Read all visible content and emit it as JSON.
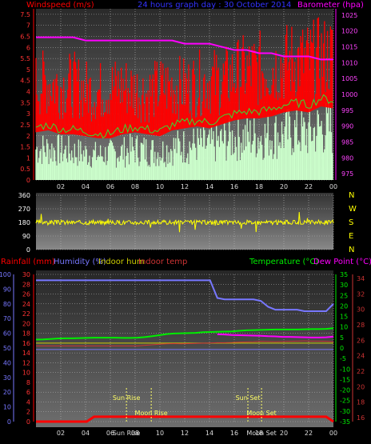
{
  "header": {
    "left": "Windspeed (m/s)",
    "center": "24 hours graph day : 30 October 2014",
    "right": "Barometer (hpa)"
  },
  "x_ticks": [
    "02",
    "04",
    "06",
    "08",
    "10",
    "12",
    "14",
    "16",
    "18",
    "20",
    "22",
    "00"
  ],
  "wind": {
    "y_ticks": [
      "0",
      "0.5",
      "1",
      "1.5",
      "2",
      "2.5",
      "3",
      "3.5",
      "4",
      "4.5",
      "5",
      "5.5",
      "6",
      "6.5",
      "7",
      "7.5"
    ],
    "y_range": [
      0,
      7.75
    ],
    "baro_ticks": [
      "975",
      "980",
      "985",
      "990",
      "995",
      "1000",
      "1005",
      "1010",
      "1015",
      "1020",
      "1025"
    ],
    "baro_range": [
      973,
      1027
    ],
    "baro_pressure": [
      1018,
      1018,
      1018,
      1018,
      1017,
      1017,
      1017,
      1017,
      1017,
      1017,
      1017,
      1017,
      1016,
      1016,
      1016,
      1015,
      1014,
      1014,
      1013,
      1013,
      1012,
      1012,
      1012,
      1011,
      1011
    ],
    "gust_level": [
      5.1,
      5.2,
      5.0,
      5.1,
      4.8,
      4.7,
      4.9,
      5.0,
      4.8,
      4.6,
      4.9,
      5.0,
      4.9,
      5.1,
      5.3,
      5.2,
      5.6,
      5.8,
      5.9,
      6.0,
      6.2,
      6.4,
      6.3,
      6.5,
      6.6
    ],
    "avg_level": [
      2.4,
      2.5,
      2.3,
      2.3,
      2.2,
      2.1,
      2.1,
      2.3,
      2.4,
      2.3,
      2.2,
      2.5,
      2.6,
      2.7,
      2.6,
      2.8,
      3.0,
      3.1,
      3.1,
      3.2,
      3.4,
      3.5,
      3.4,
      3.7,
      3.6
    ],
    "light_level": [
      2.0,
      2.0,
      1.9,
      1.8,
      1.7,
      1.6,
      1.7,
      1.8,
      2.0,
      1.9,
      1.8,
      2.1,
      2.2,
      2.3,
      2.2,
      2.5,
      2.7,
      2.8,
      2.8,
      2.9,
      3.0,
      3.1,
      3.0,
      3.4,
      3.3
    ],
    "colors": {
      "gust": "#ff0000",
      "avg": "#33dd33",
      "light": "#ccffcc",
      "baro": "#ff00ff"
    }
  },
  "direction": {
    "y_ticks": [
      "0",
      "90",
      "180",
      "270",
      "360"
    ],
    "compass": [
      "N",
      "W",
      "S",
      "E",
      "N"
    ],
    "y_range": [
      0,
      360
    ],
    "mean_deg": 180,
    "color": "#ffff00"
  },
  "bottom": {
    "labels": {
      "rain": "Rainfall (mm)",
      "humidity": "Humidity (%)",
      "indoor_hum": "Indoor hum",
      "indoor_temp": "Indoor temp",
      "temperature": "Temperature (°C)",
      "dew": "Dew Point (°C)"
    },
    "humidity_ticks": [
      "0",
      "10",
      "20",
      "30",
      "40",
      "50",
      "60",
      "70",
      "80",
      "90",
      "100"
    ],
    "rain_ticks": [
      "0",
      "2",
      "4",
      "6",
      "8",
      "10",
      "12",
      "14",
      "16",
      "18",
      "20",
      "22",
      "24",
      "26",
      "28",
      "30"
    ],
    "temp_ticks": [
      "-35",
      "-30",
      "-25",
      "-20",
      "-15",
      "-10",
      "-5",
      "0",
      "5",
      "10",
      "15",
      "20",
      "25",
      "30",
      "35"
    ],
    "indoor_ticks": [
      "16",
      "18",
      "20",
      "22",
      "24",
      "26",
      "28",
      "30",
      "32",
      "34"
    ],
    "humidity_range": [
      0,
      100
    ],
    "rain_range": [
      0,
      30
    ],
    "temp_range": [
      -35,
      35
    ],
    "humidity_series": [
      96,
      96,
      96,
      96,
      96,
      96,
      96,
      96,
      96,
      96,
      96,
      96,
      96,
      96,
      96,
      96,
      96,
      96,
      96,
      96,
      96,
      96,
      96,
      96,
      96,
      84,
      83,
      83,
      83,
      83,
      83,
      82,
      78,
      76,
      76,
      76,
      76,
      75,
      75,
      75,
      75,
      80
    ],
    "temperature_series": [
      4.0,
      4.1,
      4.3,
      4.5,
      4.6,
      4.6,
      4.7,
      4.8,
      4.9,
      4.9,
      4.9,
      4.9,
      4.8,
      4.8,
      4.9,
      5.2,
      5.6,
      6.1,
      6.6,
      6.9,
      7.0,
      7.1,
      7.2,
      7.5,
      7.6,
      7.7,
      7.8,
      7.9,
      8.2,
      8.4,
      8.5,
      8.6,
      8.7,
      8.8,
      8.8,
      8.8,
      8.8,
      8.9,
      9.0,
      9.0,
      9.1,
      9.4
    ],
    "dew_series": [
      null,
      null,
      null,
      null,
      null,
      null,
      null,
      null,
      null,
      null,
      null,
      null,
      null,
      null,
      null,
      null,
      null,
      null,
      null,
      null,
      null,
      null,
      null,
      null,
      null,
      6.5,
      6.4,
      6.2,
      6.1,
      6.0,
      5.9,
      5.8,
      5.6,
      5.5,
      5.3,
      5.3,
      5.2,
      5.1,
      5.0,
      5.0,
      5.1,
      5.4
    ],
    "indoor_temp_series": [
      22.0,
      22.0,
      22.0,
      22.0,
      22.0,
      22.0,
      22.0,
      22.0,
      22.0,
      22.0,
      22.0,
      22.0,
      22.0,
      22.0,
      22.0,
      22.3,
      22.5,
      22.8,
      23.0,
      23.1,
      23.0,
      23.1,
      23.2,
      23.3,
      23.4,
      23.5,
      23.5,
      23.6,
      23.8,
      23.9,
      24.0,
      24.2,
      24.1,
      24.0,
      24.1,
      24.2,
      24.3,
      24.4,
      24.3,
      24.3,
      24.2,
      24.0
    ],
    "indoor_hum_series": [
      16,
      16,
      16,
      16,
      16,
      16,
      16,
      16,
      16,
      16,
      16,
      16,
      16,
      16,
      16,
      16,
      16,
      16,
      16,
      16,
      16,
      16,
      16,
      16,
      16,
      16,
      16,
      16,
      16,
      16,
      16,
      16,
      16,
      16,
      16,
      16,
      16,
      16,
      16,
      16,
      16,
      16
    ],
    "rain_series": [
      0,
      0,
      0,
      0,
      0,
      0,
      0,
      0,
      1,
      1,
      1,
      1,
      1,
      1,
      1,
      1,
      1,
      1,
      1,
      1,
      1,
      1,
      1,
      1,
      1,
      1,
      1,
      1,
      1,
      1,
      1,
      1,
      1,
      1,
      1,
      1,
      1,
      1,
      1,
      1,
      1,
      0
    ],
    "flat_line_humidity": 49,
    "annotations": [
      {
        "label": "Sun Rise",
        "hour": 7.3
      },
      {
        "label": "Sun Set",
        "hour": 17.1
      },
      {
        "label": "Moon Rise",
        "hour": 9.3
      },
      {
        "label": "Moon Set",
        "hour": 18.2
      }
    ],
    "x_extra": [
      "Sun Rise",
      "Moon Set"
    ],
    "colors": {
      "rain": "#ff0000",
      "humidity": "#7777ff",
      "indoor_hum": "#cccc00",
      "indoor_temp": "#cc3333",
      "temperature": "#00ee00",
      "dew": "#ff00ff",
      "annot": "#ffff66"
    }
  }
}
